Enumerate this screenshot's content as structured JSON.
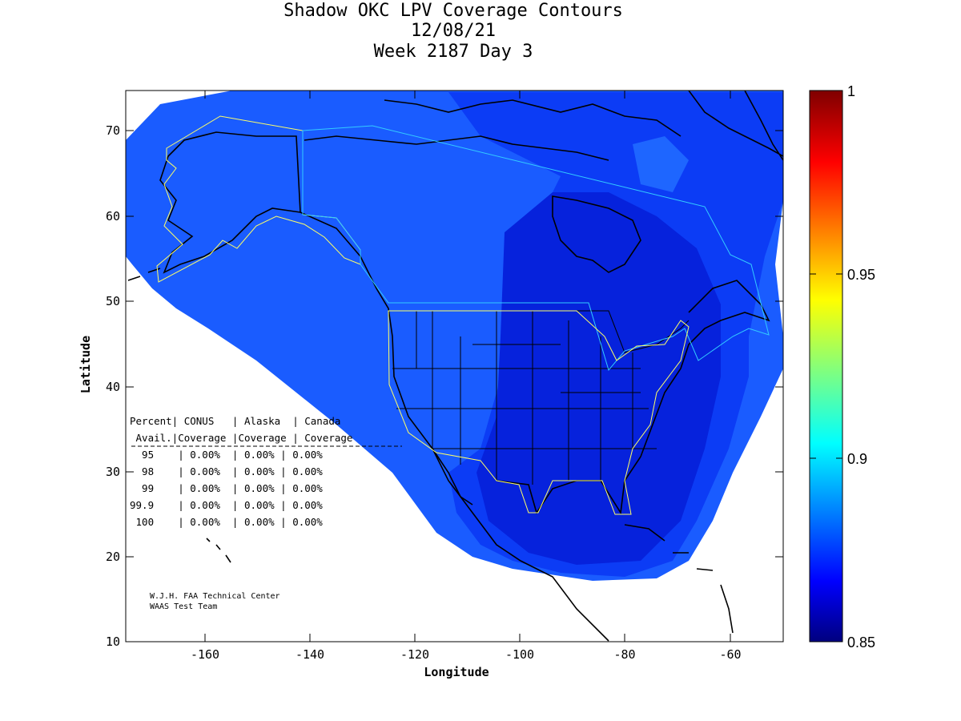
{
  "title": {
    "line1": "Shadow OKC LPV Coverage Contours",
    "line2": "12/08/21",
    "line3": "Week 2187 Day 3"
  },
  "axes": {
    "xlabel": "Longitude",
    "ylabel": "Latitude",
    "x_ticks": [
      "-160",
      "-140",
      "-120",
      "-100",
      "-80",
      "-60"
    ],
    "y_ticks": [
      "70",
      "60",
      "50",
      "40",
      "30",
      "20",
      "10"
    ],
    "xlim": [
      -175,
      -50
    ],
    "ylim": [
      10,
      75
    ]
  },
  "colorbar": {
    "ticks": [
      "1",
      "0.95",
      "0.9",
      "0.85"
    ],
    "range": [
      0.85,
      1.0
    ],
    "colormap": "jet"
  },
  "coverage_table": {
    "header1": "Percent| CONUS   | Alaska  | Canada",
    "header2": " Avail.|Coverage |Coverage | Coverage",
    "rows": [
      "  95    | 0.00%  | 0.00% | 0.00%",
      "  98    | 0.00%  | 0.00% | 0.00%",
      "  99    | 0.00%  | 0.00% | 0.00%",
      "99.9    | 0.00%  | 0.00% | 0.00%",
      " 100    | 0.00%  | 0.00% | 0.00%"
    ]
  },
  "credits": {
    "line1": "W.J.H. FAA Technical Center",
    "line2": "WAAS Test Team"
  },
  "colors": {
    "coverage_light": "#1a5cff",
    "coverage_mid": "#0c3cf5",
    "coverage_dark": "#0622dc",
    "coastline": "#000000",
    "service_area": "#ffff66",
    "service_area_canada": "#33ccff"
  }
}
